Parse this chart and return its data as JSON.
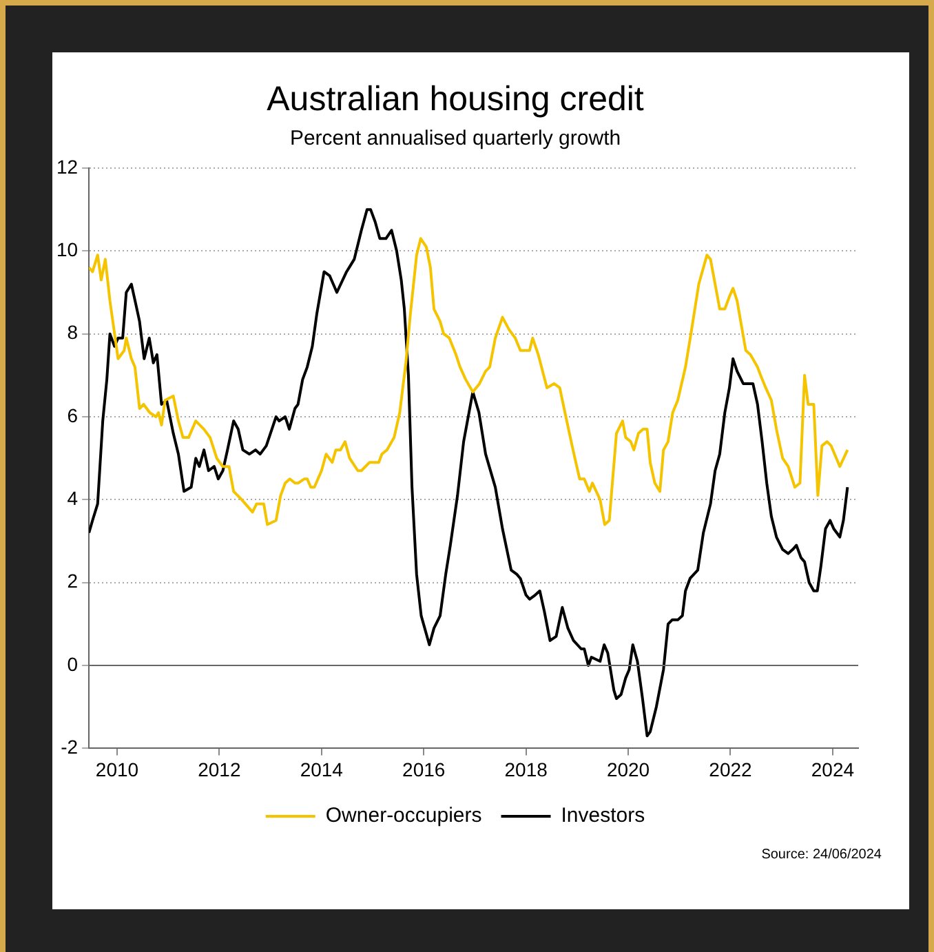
{
  "chart_data": {
    "type": "line",
    "title": "Australian housing credit",
    "subtitle": "Percent annualised quarterly growth",
    "annotations": [
      "Source: 24/06/2024"
    ],
    "xlim": [
      2009.45,
      2024.5
    ],
    "xticks": [
      2010,
      2012,
      2014,
      2016,
      2018,
      2020,
      2022,
      2024
    ],
    "ylim": [
      -2,
      12
    ],
    "yticks": [
      -2,
      0,
      2,
      4,
      6,
      8,
      10,
      12
    ],
    "grid": "y",
    "legend": "bottom",
    "marker": "none",
    "line_style": "solid",
    "ref_lines": [
      {
        "axis": "y",
        "value": 0,
        "color": "#666666"
      }
    ],
    "series": [
      {
        "name": "Owner-occupiers",
        "color": "#f5c400",
        "x": [
          2009.45,
          2009.52,
          2009.62,
          2009.69,
          2009.77,
          2009.86,
          2010.02,
          2010.14,
          2010.18,
          2010.28,
          2010.35,
          2010.44,
          2010.52,
          2010.64,
          2010.76,
          2010.81,
          2010.87,
          2010.94,
          2011.1,
          2011.2,
          2011.29,
          2011.4,
          2011.54,
          2011.7,
          2011.82,
          2011.95,
          2012.07,
          2012.19,
          2012.28,
          2012.44,
          2012.65,
          2012.73,
          2012.87,
          2012.94,
          2013.11,
          2013.2,
          2013.29,
          2013.38,
          2013.48,
          2013.54,
          2013.66,
          2013.72,
          2013.79,
          2013.86,
          2014.0,
          2014.09,
          2014.21,
          2014.28,
          2014.37,
          2014.46,
          2014.55,
          2014.71,
          2014.78,
          2014.94,
          2015.12,
          2015.18,
          2015.28,
          2015.42,
          2015.53,
          2015.65,
          2015.74,
          2015.86,
          2015.94,
          2016.05,
          2016.13,
          2016.2,
          2016.32,
          2016.39,
          2016.5,
          2016.63,
          2016.71,
          2016.82,
          2016.96,
          2017.09,
          2017.21,
          2017.29,
          2017.4,
          2017.54,
          2017.67,
          2017.79,
          2017.89,
          2018.01,
          2018.07,
          2018.13,
          2018.24,
          2018.41,
          2018.55,
          2018.66,
          2018.78,
          2018.92,
          2019.05,
          2019.14,
          2019.24,
          2019.3,
          2019.45,
          2019.54,
          2019.63,
          2019.77,
          2019.89,
          2019.95,
          2020.05,
          2020.11,
          2020.2,
          2020.29,
          2020.37,
          2020.43,
          2020.52,
          2020.62,
          2020.69,
          2020.78,
          2020.87,
          2020.97,
          2021.12,
          2021.24,
          2021.38,
          2021.54,
          2021.61,
          2021.7,
          2021.79,
          2021.89,
          2021.98,
          2022.05,
          2022.13,
          2022.3,
          2022.39,
          2022.53,
          2022.59,
          2022.69,
          2022.8,
          2022.9,
          2023.02,
          2023.13,
          2023.26,
          2023.36,
          2023.45,
          2023.52,
          2023.63,
          2023.71,
          2023.79,
          2023.89,
          2023.97,
          2024.14,
          2024.29
        ],
        "values": [
          9.6,
          9.5,
          9.9,
          9.3,
          9.8,
          8.8,
          7.4,
          7.6,
          7.9,
          7.4,
          7.2,
          6.2,
          6.3,
          6.1,
          6.0,
          6.1,
          5.8,
          6.4,
          6.5,
          5.9,
          5.5,
          5.5,
          5.9,
          5.7,
          5.5,
          5.0,
          4.8,
          4.8,
          4.2,
          4.0,
          3.7,
          3.9,
          3.9,
          3.4,
          3.5,
          4.1,
          4.4,
          4.5,
          4.4,
          4.4,
          4.5,
          4.5,
          4.3,
          4.3,
          4.7,
          5.1,
          4.9,
          5.2,
          5.2,
          5.4,
          5.0,
          4.7,
          4.7,
          4.9,
          4.9,
          5.1,
          5.2,
          5.5,
          6.1,
          7.3,
          8.5,
          9.9,
          10.3,
          10.1,
          9.6,
          8.6,
          8.3,
          8.0,
          7.9,
          7.5,
          7.2,
          6.9,
          6.6,
          6.8,
          7.1,
          7.2,
          7.9,
          8.4,
          8.1,
          7.9,
          7.6,
          7.6,
          7.6,
          7.9,
          7.5,
          6.7,
          6.8,
          6.7,
          6.0,
          5.2,
          4.5,
          4.5,
          4.2,
          4.4,
          4.0,
          3.4,
          3.5,
          5.6,
          5.9,
          5.5,
          5.4,
          5.2,
          5.6,
          5.7,
          5.7,
          4.9,
          4.4,
          4.2,
          5.2,
          5.4,
          6.1,
          6.4,
          7.2,
          8.1,
          9.2,
          9.9,
          9.8,
          9.2,
          8.6,
          8.6,
          8.9,
          9.1,
          8.8,
          7.6,
          7.5,
          7.2,
          7.0,
          6.7,
          6.4,
          5.7,
          5.0,
          4.8,
          4.3,
          4.4,
          7.0,
          6.3,
          6.3,
          4.1,
          5.3,
          5.4,
          5.3,
          4.8,
          5.2
        ]
      },
      {
        "name": "Investors",
        "color": "#000000",
        "x": [
          2009.45,
          2009.52,
          2009.62,
          2009.72,
          2009.8,
          2009.86,
          2009.95,
          2010.02,
          2010.11,
          2010.18,
          2010.28,
          2010.37,
          2010.44,
          2010.53,
          2010.63,
          2010.71,
          2010.78,
          2010.87,
          2010.97,
          2011.1,
          2011.2,
          2011.31,
          2011.45,
          2011.54,
          2011.61,
          2011.7,
          2011.79,
          2011.9,
          2011.98,
          2012.07,
          2012.16,
          2012.28,
          2012.37,
          2012.46,
          2012.59,
          2012.71,
          2012.8,
          2012.92,
          2013.11,
          2013.17,
          2013.29,
          2013.37,
          2013.48,
          2013.54,
          2013.63,
          2013.72,
          2013.82,
          2013.91,
          2014.05,
          2014.16,
          2014.3,
          2014.49,
          2014.64,
          2014.78,
          2014.89,
          2014.96,
          2015.05,
          2015.14,
          2015.26,
          2015.37,
          2015.47,
          2015.56,
          2015.62,
          2015.7,
          2015.77,
          2015.86,
          2015.95,
          2016.11,
          2016.2,
          2016.32,
          2016.43,
          2016.52,
          2016.66,
          2016.78,
          2016.96,
          2017.08,
          2017.21,
          2017.4,
          2017.54,
          2017.71,
          2017.82,
          2017.89,
          2018.0,
          2018.07,
          2018.18,
          2018.27,
          2018.36,
          2018.47,
          2018.59,
          2018.71,
          2018.82,
          2018.93,
          2019.08,
          2019.14,
          2019.22,
          2019.28,
          2019.45,
          2019.53,
          2019.6,
          2019.72,
          2019.77,
          2019.86,
          2019.95,
          2020.02,
          2020.09,
          2020.18,
          2020.28,
          2020.37,
          2020.43,
          2020.55,
          2020.69,
          2020.78,
          2020.86,
          2020.97,
          2021.06,
          2021.12,
          2021.21,
          2021.36,
          2021.47,
          2021.61,
          2021.7,
          2021.79,
          2021.89,
          2021.98,
          2022.05,
          2022.13,
          2022.25,
          2022.33,
          2022.44,
          2022.53,
          2022.62,
          2022.71,
          2022.8,
          2022.9,
          2023.02,
          2023.13,
          2023.22,
          2023.29,
          2023.38,
          2023.45,
          2023.54,
          2023.63,
          2023.7,
          2023.77,
          2023.86,
          2023.95,
          2024.02,
          2024.14,
          2024.21,
          2024.29
        ],
        "values": [
          3.2,
          3.5,
          3.9,
          5.9,
          6.9,
          8.0,
          7.7,
          7.9,
          7.9,
          9.0,
          9.2,
          8.7,
          8.3,
          7.4,
          7.9,
          7.3,
          7.5,
          6.3,
          6.4,
          5.6,
          5.1,
          4.2,
          4.3,
          5.0,
          4.8,
          5.2,
          4.7,
          4.8,
          4.5,
          4.7,
          5.2,
          5.9,
          5.7,
          5.2,
          5.1,
          5.2,
          5.1,
          5.3,
          6.0,
          5.9,
          6.0,
          5.7,
          6.2,
          6.3,
          6.9,
          7.2,
          7.7,
          8.5,
          9.5,
          9.4,
          9.0,
          9.5,
          9.8,
          10.5,
          11.0,
          11.0,
          10.7,
          10.3,
          10.3,
          10.5,
          10.0,
          9.3,
          8.6,
          7.0,
          4.3,
          2.2,
          1.2,
          0.5,
          0.9,
          1.2,
          2.2,
          2.9,
          4.1,
          5.4,
          6.6,
          6.1,
          5.1,
          4.3,
          3.3,
          2.3,
          2.2,
          2.1,
          1.7,
          1.6,
          1.7,
          1.8,
          1.3,
          0.6,
          0.7,
          1.4,
          0.9,
          0.6,
          0.4,
          0.4,
          0.0,
          0.2,
          0.1,
          0.5,
          0.3,
          -0.6,
          -0.8,
          -0.7,
          -0.3,
          -0.1,
          0.5,
          0.1,
          -0.8,
          -1.7,
          -1.6,
          -1.0,
          -0.1,
          1.0,
          1.1,
          1.1,
          1.2,
          1.8,
          2.1,
          2.3,
          3.2,
          3.9,
          4.7,
          5.1,
          6.1,
          6.7,
          7.4,
          7.1,
          6.8,
          6.8,
          6.8,
          6.3,
          5.4,
          4.4,
          3.6,
          3.1,
          2.8,
          2.7,
          2.8,
          2.9,
          2.6,
          2.5,
          2.0,
          1.8,
          1.8,
          2.4,
          3.3,
          3.5,
          3.3,
          3.1,
          3.5,
          4.3
        ]
      }
    ]
  }
}
